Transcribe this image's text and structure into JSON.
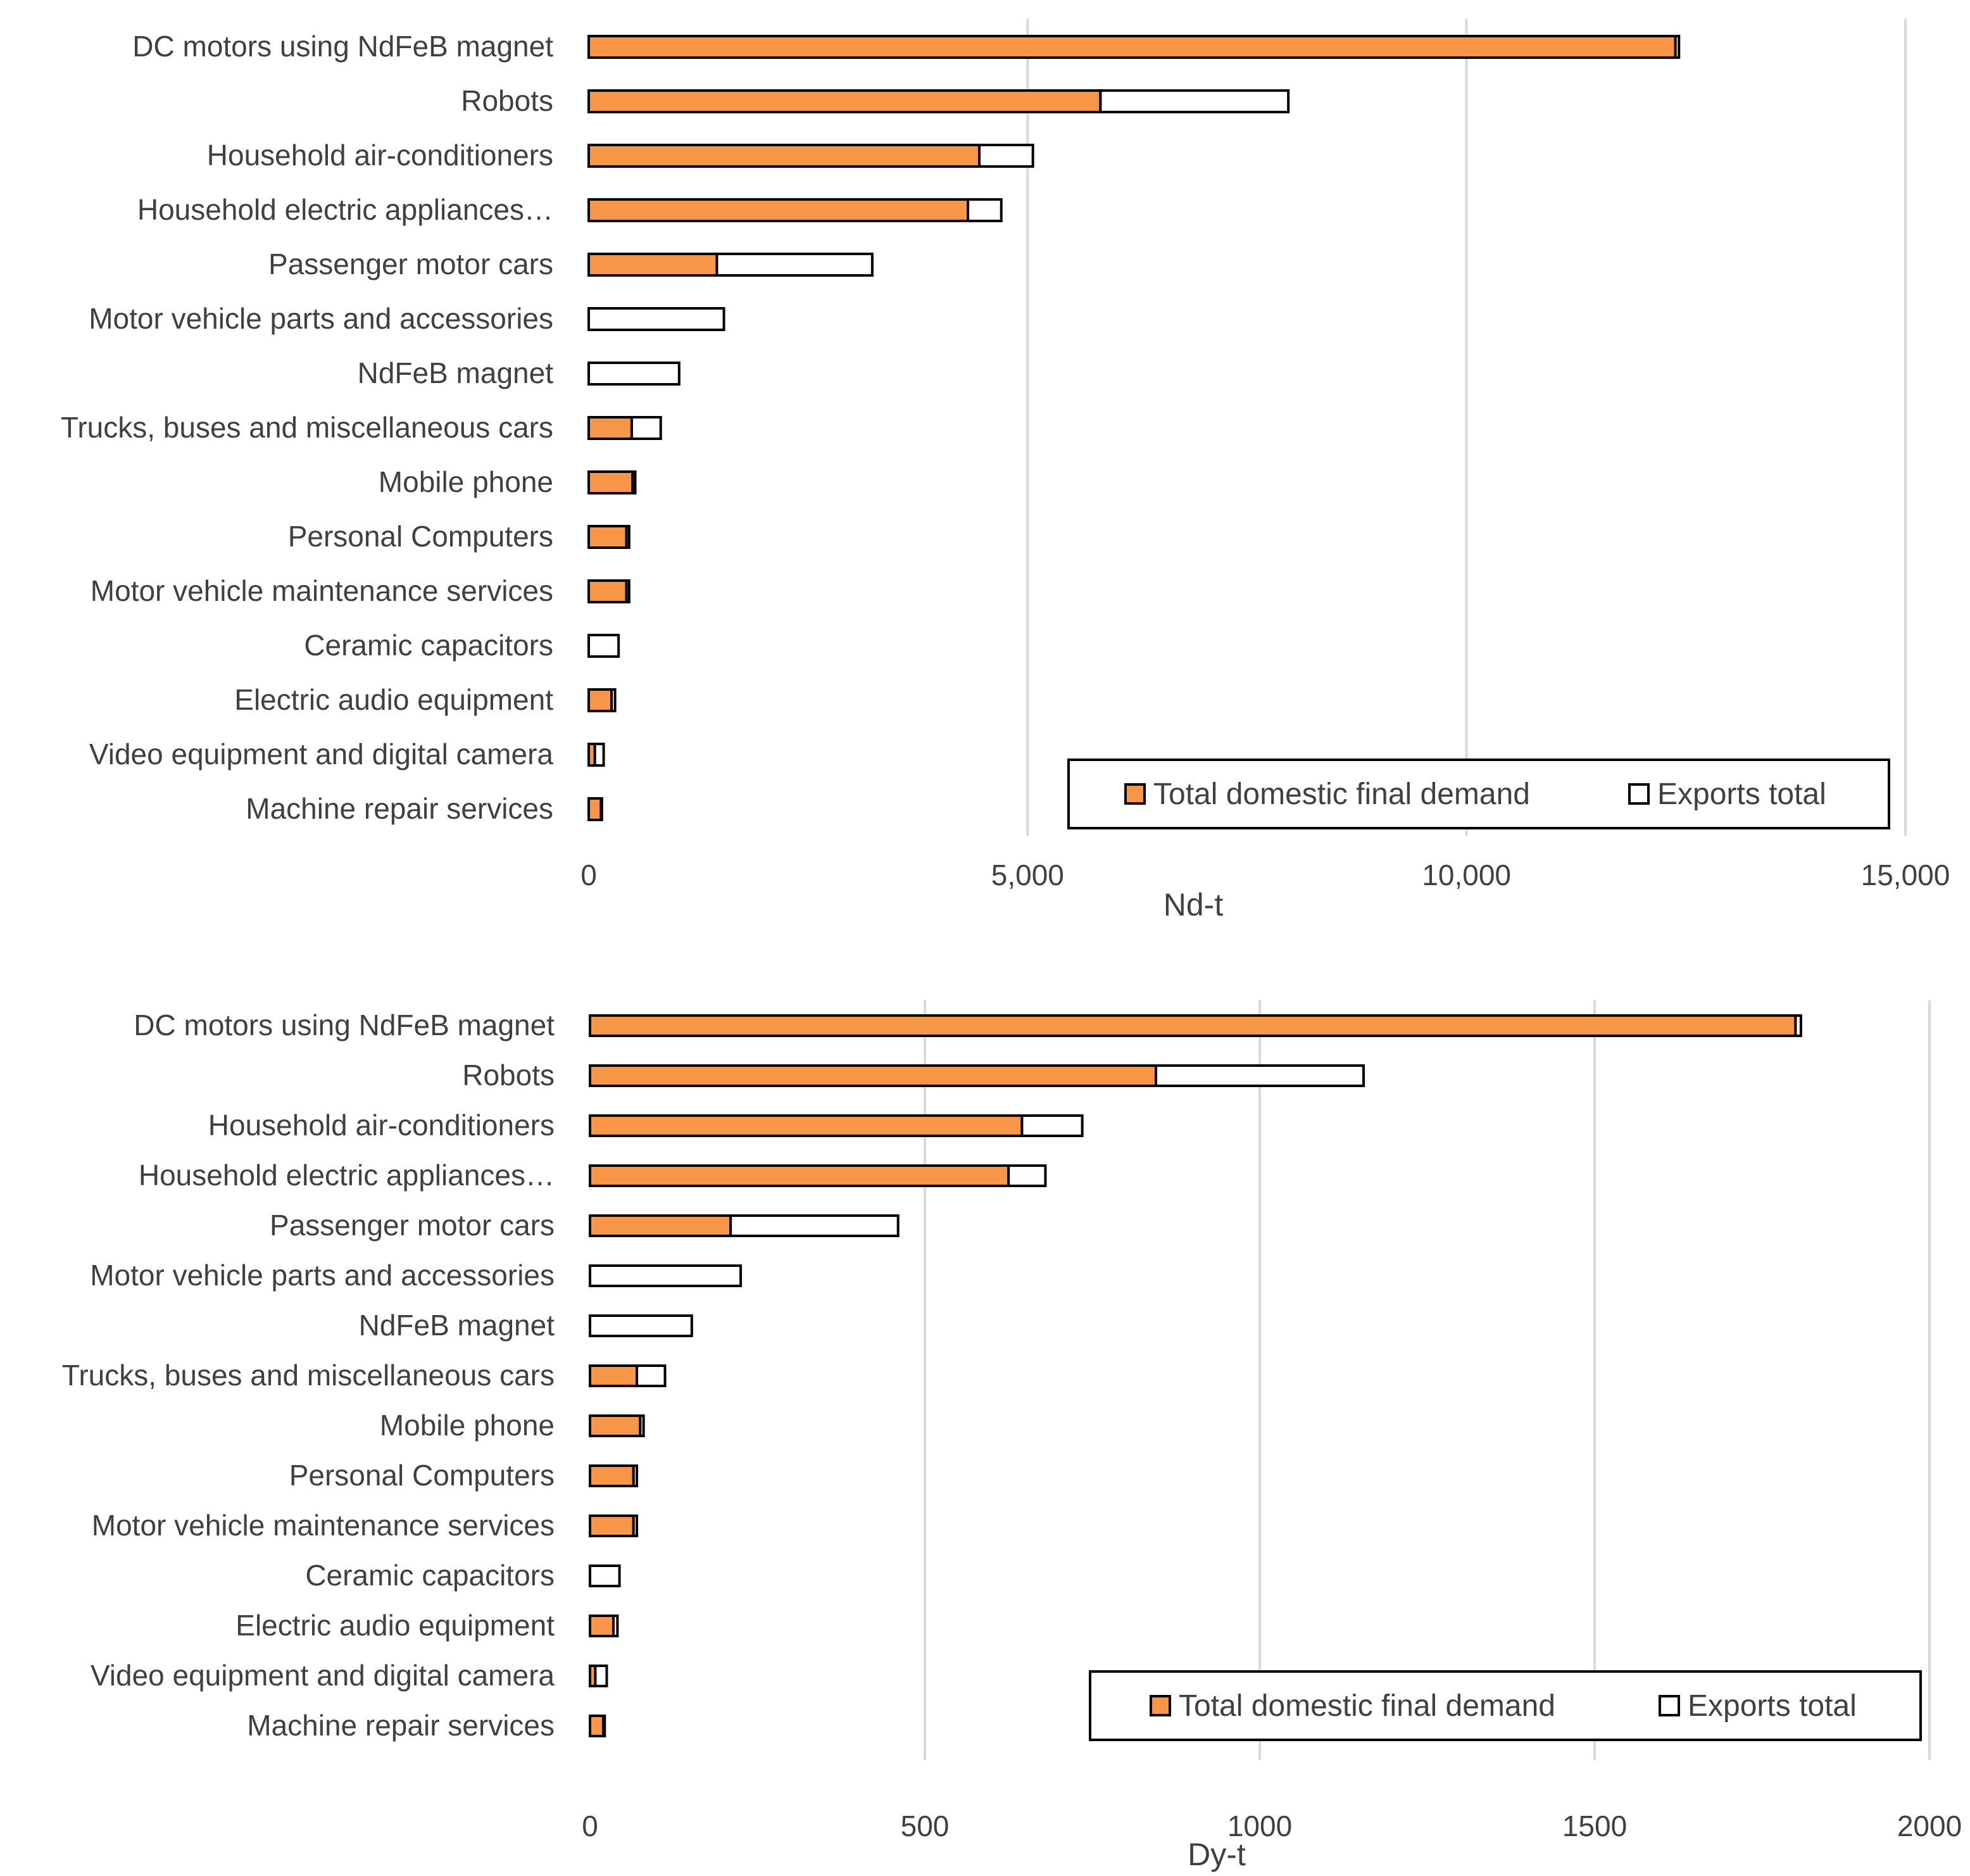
{
  "chart_data": [
    {
      "type": "bar",
      "orientation": "horizontal",
      "stacked": true,
      "title": "",
      "xlabel": "Nd-t",
      "ylabel": "",
      "xlim": [
        0,
        15000
      ],
      "xticks": [
        0,
        5000,
        10000,
        15000
      ],
      "xtick_labels": [
        "0",
        "5,000",
        "10,000",
        "15,000"
      ],
      "grid": true,
      "legend_position": "bottom-right",
      "categories": [
        "DC motors using NdFeB magnet",
        "Robots",
        "Household air-conditioners",
        "Household electric appliances…",
        "Passenger motor cars",
        "Motor vehicle parts and accessories",
        "NdFeB magnet",
        "Trucks, buses and miscellaneous cars",
        "Mobile phone",
        "Personal Computers",
        "Motor vehicle maintenance services",
        "Ceramic capacitors",
        "Electric audio equipment",
        "Video equipment and digital camera",
        "Machine repair services"
      ],
      "series": [
        {
          "name": "Total domestic final demand",
          "color": "#F79646",
          "values": [
            12380,
            5830,
            4450,
            4320,
            1460,
            0,
            0,
            490,
            500,
            430,
            430,
            0,
            260,
            70,
            140
          ]
        },
        {
          "name": "Exports total",
          "color": "#FFFFFF",
          "values": [
            40,
            2140,
            610,
            380,
            1770,
            1540,
            1030,
            330,
            30,
            30,
            30,
            340,
            40,
            100,
            10
          ]
        }
      ]
    },
    {
      "type": "bar",
      "orientation": "horizontal",
      "stacked": true,
      "title": "",
      "xlabel": "Dy-t",
      "ylabel": "",
      "xlim": [
        0,
        2000
      ],
      "xticks": [
        0,
        500,
        1000,
        1500,
        2000
      ],
      "xtick_labels": [
        "0",
        "500",
        "1000",
        "1500",
        "2000"
      ],
      "grid": true,
      "legend_position": "bottom-right",
      "categories": [
        "DC motors using NdFeB magnet",
        "Robots",
        "Household air-conditioners",
        "Household electric appliances…",
        "Passenger motor cars",
        "Motor vehicle parts and accessories",
        "NdFeB magnet",
        "Trucks, buses and miscellaneous cars",
        "Mobile phone",
        "Personal Computers",
        "Motor vehicle maintenance services",
        "Ceramic capacitors",
        "Electric audio equipment",
        "Video equipment and digital camera",
        "Machine repair services"
      ],
      "series": [
        {
          "name": "Total domestic final demand",
          "color": "#F79646",
          "values": [
            1800,
            845,
            645,
            625,
            210,
            0,
            0,
            70,
            75,
            65,
            65,
            0,
            35,
            8,
            20
          ]
        },
        {
          "name": "Exports total",
          "color": "#FFFFFF",
          "values": [
            8,
            310,
            90,
            55,
            250,
            225,
            152,
            42,
            5,
            5,
            5,
            44,
            6,
            17,
            2
          ]
        }
      ]
    }
  ]
}
